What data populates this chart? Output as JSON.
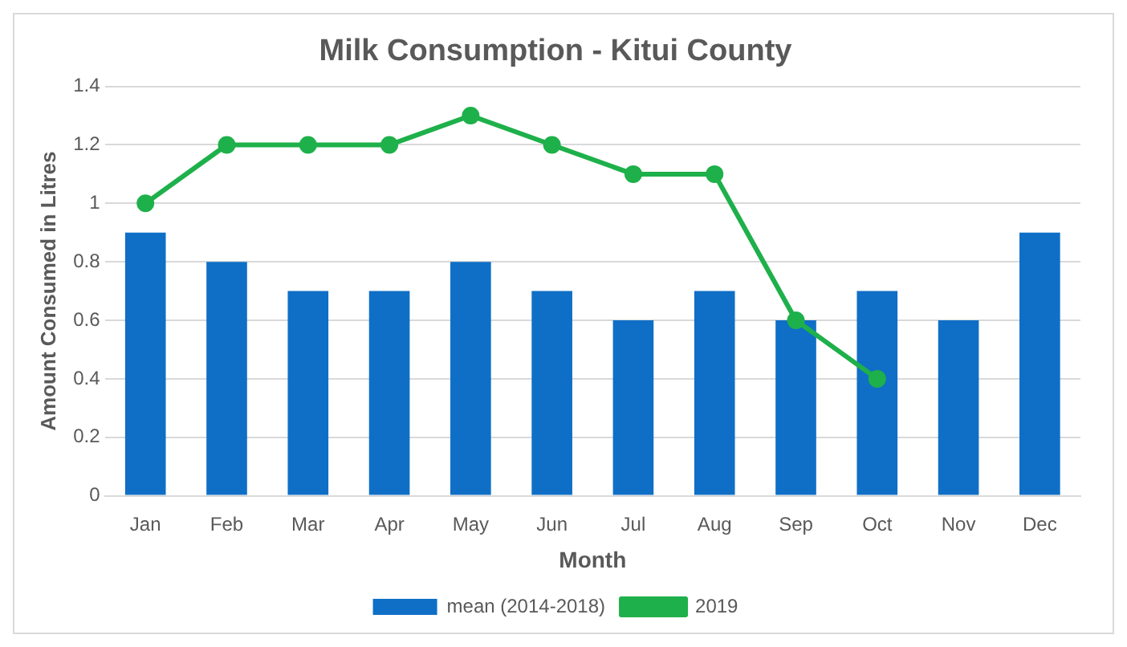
{
  "chart_data": {
    "type": "bar",
    "title": "Milk Consumption - Kitui County",
    "xlabel": "Month",
    "ylabel": "Amount Consumed in Litres",
    "categories": [
      "Jan",
      "Feb",
      "Mar",
      "Apr",
      "May",
      "Jun",
      "Jul",
      "Aug",
      "Sep",
      "Oct",
      "Nov",
      "Dec"
    ],
    "series": [
      {
        "name": "mean (2014-2018)",
        "color": "#0f6fc6",
        "values": [
          0.9,
          0.8,
          0.7,
          0.7,
          0.8,
          0.7,
          0.6,
          0.7,
          0.6,
          0.7,
          0.6,
          0.9
        ]
      },
      {
        "name": "2019",
        "type": "line",
        "color": "#1eb04a",
        "values": [
          1.0,
          1.2,
          1.2,
          1.2,
          1.3,
          1.2,
          1.1,
          1.1,
          0.6,
          0.4,
          null,
          null
        ]
      }
    ],
    "ylim": [
      0,
      1.4
    ],
    "yticks": [
      0,
      0.2,
      0.4,
      0.6,
      0.8,
      1,
      1.2,
      1.4
    ],
    "grid": "y",
    "legend": "bottom",
    "marker": "circle",
    "line_style": "solid"
  }
}
